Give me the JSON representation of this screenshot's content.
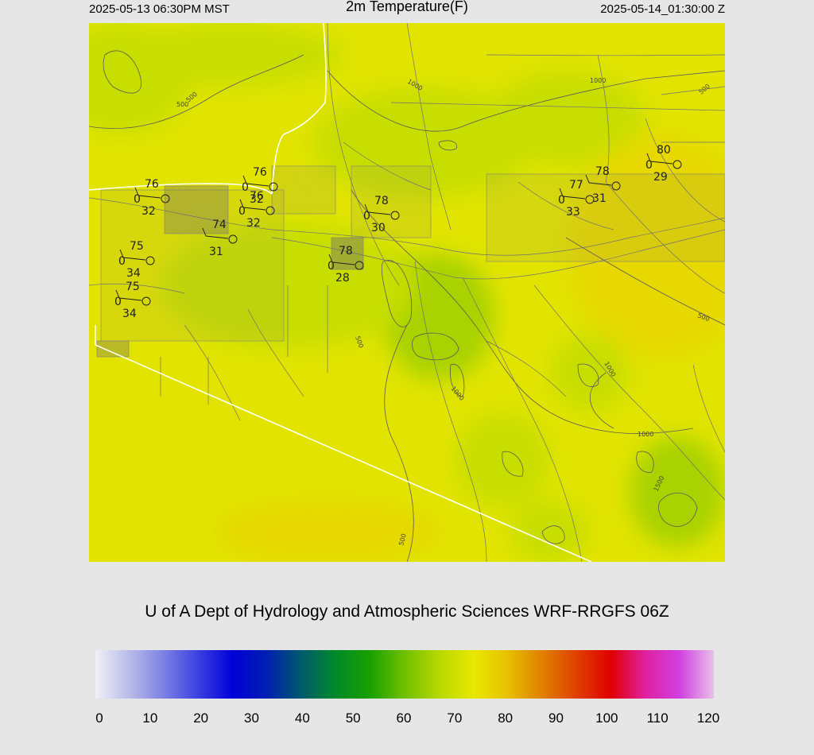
{
  "header": {
    "valid_local": "2025-05-13 06:30PM MST",
    "title": "2m Temperature(F)",
    "valid_utc": "2025-05-14_01:30:00 Z"
  },
  "footer": {
    "credit": "U of A Dept of Hydrology and Atmospheric Sciences WRF-RRGFS 06Z"
  },
  "colorbar": {
    "ticks": [
      "0",
      "10",
      "20",
      "30",
      "40",
      "50",
      "60",
      "70",
      "80",
      "90",
      "100",
      "110",
      "120"
    ],
    "colors": [
      "#f0f0f6",
      "#b8bbe8",
      "#7b80e4",
      "#3a40e0",
      "#0000d8",
      "#0020b0",
      "#005a6c",
      "#008a28",
      "#1aa000",
      "#70c000",
      "#b8d800",
      "#e8e800",
      "#e8c000",
      "#e08000",
      "#e04000",
      "#e00000",
      "#e020a0",
      "#d040e0",
      "#e8c0e8"
    ]
  },
  "map": {
    "field_colors": {
      "base": "#e2e400",
      "greener": "#c8de00",
      "greenest": "#a8d200",
      "warmer": "#e6d800"
    },
    "contour_labels": [
      "500",
      "1000",
      "500",
      "500",
      "1000",
      "1000",
      "500",
      "1000",
      "1000",
      "1500",
      "500",
      "500"
    ],
    "stations": [
      {
        "temp": "76",
        "dew": "32",
        "wind": "0"
      },
      {
        "temp": "76",
        "dew": "32",
        "wind": "0"
      },
      {
        "temp": "76",
        "dew": "32",
        "wind": "0"
      },
      {
        "temp": "74",
        "dew": "31",
        "wind": ""
      },
      {
        "temp": "75",
        "dew": "34",
        "wind": "0"
      },
      {
        "temp": "75",
        "dew": "34",
        "wind": "0"
      },
      {
        "temp": "78",
        "dew": "30",
        "wind": "0"
      },
      {
        "temp": "78",
        "dew": "28",
        "wind": "0"
      },
      {
        "temp": "77",
        "dew": "33",
        "wind": "0"
      },
      {
        "temp": "78",
        "dew": "31",
        "wind": ""
      },
      {
        "temp": "80",
        "dew": "29",
        "wind": "0"
      }
    ]
  }
}
